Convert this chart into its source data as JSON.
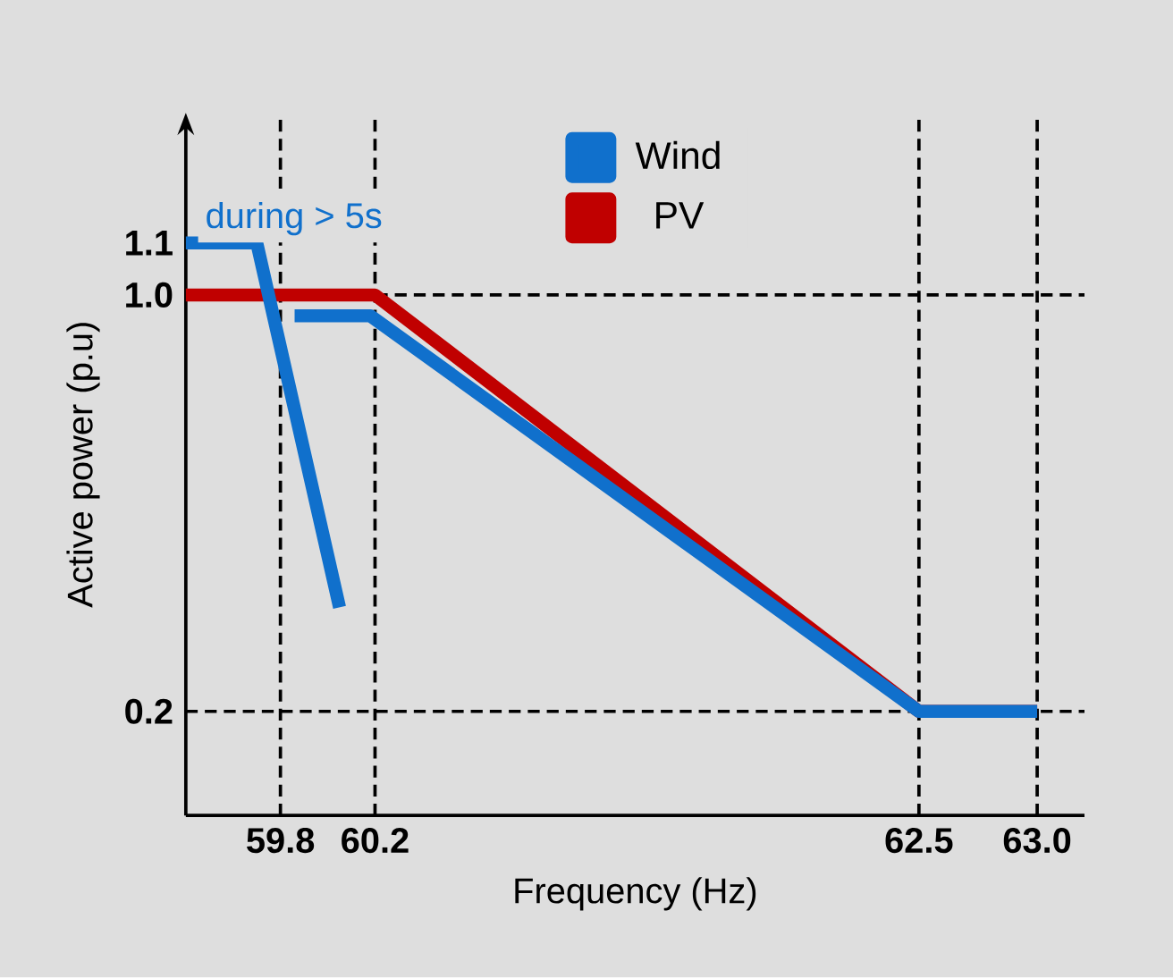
{
  "chart_data": {
    "type": "line",
    "xlabel": "Frequency (Hz)",
    "ylabel": "Active power (p.u)",
    "xlim": [
      59.4,
      63.2
    ],
    "ylim": [
      0,
      1.35
    ],
    "xticks": [
      59.8,
      60.2,
      62.5,
      {
        "value": 63.0,
        "label": "63.0"
      }
    ],
    "yticks": [
      0.2,
      {
        "value": 1.0,
        "label": "1.0"
      },
      1.1
    ],
    "series": [
      {
        "name": "Wind",
        "color": "#1070cc",
        "x": [
          59.4,
          59.7,
          60.05
        ],
        "values": [
          1.1,
          1.1,
          0.4
        ]
      },
      {
        "color": "#1070cc",
        "x": [
          59.86,
          60.18,
          62.5,
          63.0
        ],
        "values": [
          0.96,
          0.96,
          0.2,
          0.2
        ]
      },
      {
        "name": "PV",
        "color": "#c00000",
        "x": [
          59.4,
          60.2,
          62.5,
          63.0
        ],
        "values": [
          1.0,
          1.0,
          0.2,
          0.2
        ]
      }
    ],
    "ref_lines": [
      {
        "axis": "x",
        "value": 59.8,
        "color": "#000000",
        "line_style": "dashed"
      },
      {
        "axis": "x",
        "value": 60.2,
        "color": "#000000",
        "line_style": "dashed"
      },
      {
        "axis": "x",
        "value": 62.5,
        "color": "#000000",
        "line_style": "dashed"
      },
      {
        "axis": "x",
        "value": 63.0,
        "color": "#000000",
        "line_style": "dashed"
      },
      {
        "axis": "y",
        "value": 1.0,
        "color": "#000000",
        "line_style": "dashed"
      },
      {
        "axis": "y",
        "value": 0.2,
        "color": "#000000",
        "line_style": "dashed"
      }
    ],
    "annotations": [
      {
        "text": "during > 5s",
        "x": 59.45,
        "y": 1.1
      }
    ],
    "legend": "top",
    "marker": "none",
    "line_style": "solid"
  }
}
